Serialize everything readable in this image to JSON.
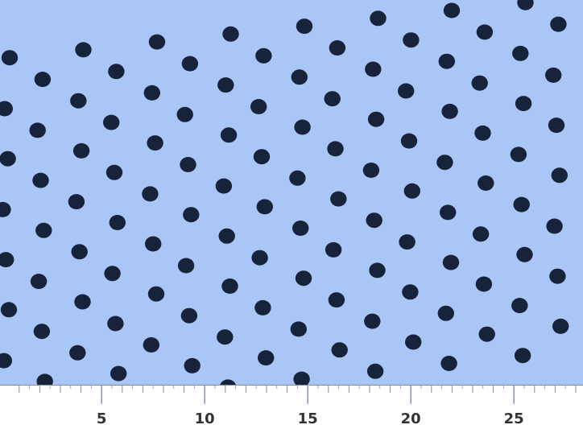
{
  "image": {
    "subject": "fabric-swatch",
    "pattern": "polka-dots",
    "background_color": "#a9c6f6",
    "dot_color": "#17233a"
  },
  "ruler": {
    "labels": [
      "5",
      "10",
      "15",
      "20",
      "25"
    ],
    "line_color": "#7f8fa3",
    "label_color": "#333333"
  }
}
